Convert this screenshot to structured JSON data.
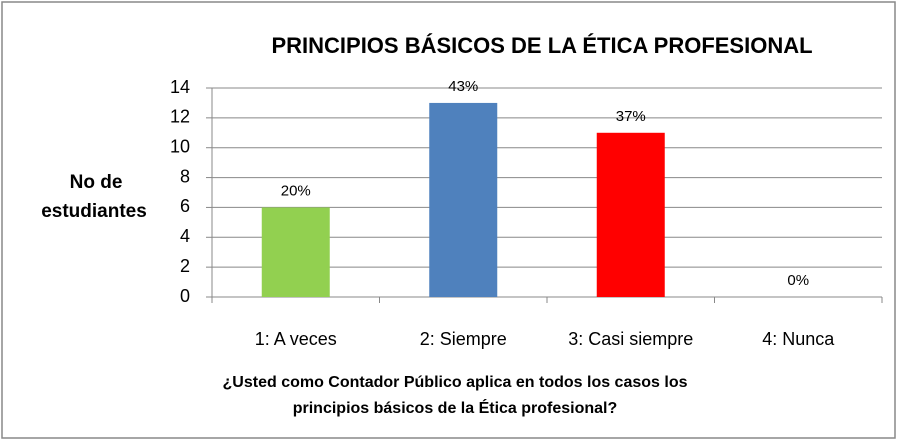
{
  "chart_data": {
    "type": "bar",
    "title": "PRINCIPIOS BÁSICOS DE LA ÉTICA PROFESIONAL",
    "ylabel": [
      "No de",
      "estudiantes"
    ],
    "xlabel": [
      "¿Usted como Contador Público aplica en todos los casos los",
      "principios básicos  de la Ética profesional?"
    ],
    "categories": [
      "1: A veces",
      "2: Siempre",
      "3: Casi siempre",
      "4:  Nunca"
    ],
    "values": [
      6,
      13,
      11,
      0
    ],
    "value_labels": [
      "20%",
      "43%",
      "37%",
      "0%"
    ],
    "colors": [
      "#92d050",
      "#4f81bd",
      "#ff0000",
      "#8064a2"
    ],
    "ylim": [
      0,
      14
    ],
    "yticks": [
      0,
      2,
      4,
      6,
      8,
      10,
      12,
      14
    ],
    "grid": true
  }
}
